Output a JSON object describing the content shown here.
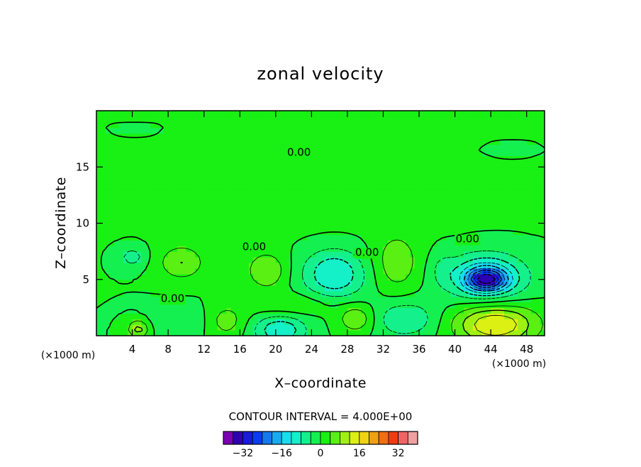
{
  "chart_data": {
    "type": "contour",
    "title": "zonal velocity",
    "xlabel": "X–coordinate",
    "ylabel": "Z–coordinate",
    "x_unit": "(×1000 m)",
    "z_unit": "(×1000 m)",
    "xlim": [
      0,
      50
    ],
    "ylim": [
      0,
      20
    ],
    "x_ticks": [
      4,
      8,
      12,
      16,
      20,
      24,
      28,
      32,
      36,
      40,
      44,
      48
    ],
    "x_tick_labels": [
      "4",
      "8",
      "12",
      "16",
      "20",
      "24",
      "28",
      "32",
      "36",
      "40",
      "44",
      "48"
    ],
    "y_ticks": [
      5,
      10,
      15
    ],
    "y_tick_labels": [
      "5",
      "10",
      "15"
    ],
    "contour_interval_text": "CONTOUR INTERVAL = 4.000E+00",
    "contour_labels": [
      {
        "text": "0.00",
        "x": 22.6,
        "z": 16.0
      },
      {
        "text": "0.00",
        "x": 17.6,
        "z": 7.6
      },
      {
        "text": "0.00",
        "x": 30.2,
        "z": 7.1
      },
      {
        "text": "0.00",
        "x": 41.4,
        "z": 8.3
      },
      {
        "text": "0.00",
        "x": 8.5,
        "z": 3.0
      }
    ],
    "colorbar": {
      "levels": [
        -36,
        -32,
        -28,
        -24,
        -20,
        -16,
        -12,
        -8,
        -4,
        0,
        4,
        8,
        12,
        16,
        20,
        24,
        28,
        32,
        36
      ],
      "colors": [
        "#7b00b3",
        "#2d00b3",
        "#1a1adb",
        "#0a3cf0",
        "#1478f0",
        "#19aaf0",
        "#1adcf0",
        "#14f0c8",
        "#14f08c",
        "#14f050",
        "#19f014",
        "#5af014",
        "#a0f014",
        "#dcf014",
        "#f0d214",
        "#f0a014",
        "#f06e14",
        "#f03c14",
        "#f06464",
        "#f0a0a0"
      ],
      "tick_values": [
        -32,
        -16,
        0,
        16,
        32
      ],
      "tick_labels": [
        "−32",
        "−16",
        "0",
        "16",
        "32"
      ]
    },
    "field_features": [
      {
        "x": 24,
        "z": 13.2,
        "rx": 18,
        "rz": 4.0,
        "value": 2
      },
      {
        "x": 43.5,
        "z": 5.2,
        "rx": 4.2,
        "rz": 2.0,
        "value": -16
      },
      {
        "x": 43.5,
        "z": 5.0,
        "rx": 2.0,
        "rz": 0.9,
        "value": -22
      },
      {
        "x": 26.5,
        "z": 5.5,
        "rx": 3.5,
        "rz": 2.2,
        "value": -12
      },
      {
        "x": 33.5,
        "z": 6.5,
        "rx": 2.5,
        "rz": 2.5,
        "value": 7
      },
      {
        "x": 9.5,
        "z": 6.5,
        "rx": 2.5,
        "rz": 1.5,
        "value": 8
      },
      {
        "x": 19,
        "z": 5.8,
        "rx": 2.2,
        "rz": 1.6,
        "value": 8
      },
      {
        "x": 22,
        "z": 2.8,
        "rx": 5.0,
        "rz": 1.0,
        "value": 4
      },
      {
        "x": 44.5,
        "z": 1.0,
        "rx": 4.5,
        "rz": 1.8,
        "value": 16
      },
      {
        "x": 20.5,
        "z": 0.5,
        "rx": 2.8,
        "rz": 1.3,
        "value": -12
      },
      {
        "x": 34.5,
        "z": 1.5,
        "rx": 3.5,
        "rz": 1.6,
        "value": -8
      },
      {
        "x": 29,
        "z": 1.5,
        "rx": 2.0,
        "rz": 1.2,
        "value": 8
      },
      {
        "x": 14.5,
        "z": 1.3,
        "rx": 2.0,
        "rz": 1.4,
        "value": 6
      },
      {
        "x": 9,
        "z": 1.3,
        "rx": 3.0,
        "rz": 1.3,
        "value": -4
      },
      {
        "x": 4.7,
        "z": 0.6,
        "rx": 1.2,
        "rz": 0.8,
        "value": 10
      },
      {
        "x": 4,
        "z": 7.0,
        "rx": 1.5,
        "rz": 0.9,
        "value": -6
      },
      {
        "x": 46,
        "z": 16.5,
        "rx": 2.5,
        "rz": 0.5,
        "value": -2
      },
      {
        "x": 4.5,
        "z": 18.3,
        "rx": 2.0,
        "rz": 0.3,
        "value": -2
      },
      {
        "x": 38.5,
        "z": 6.0,
        "rx": 1.3,
        "rz": 1.5,
        "value": -3
      }
    ]
  }
}
